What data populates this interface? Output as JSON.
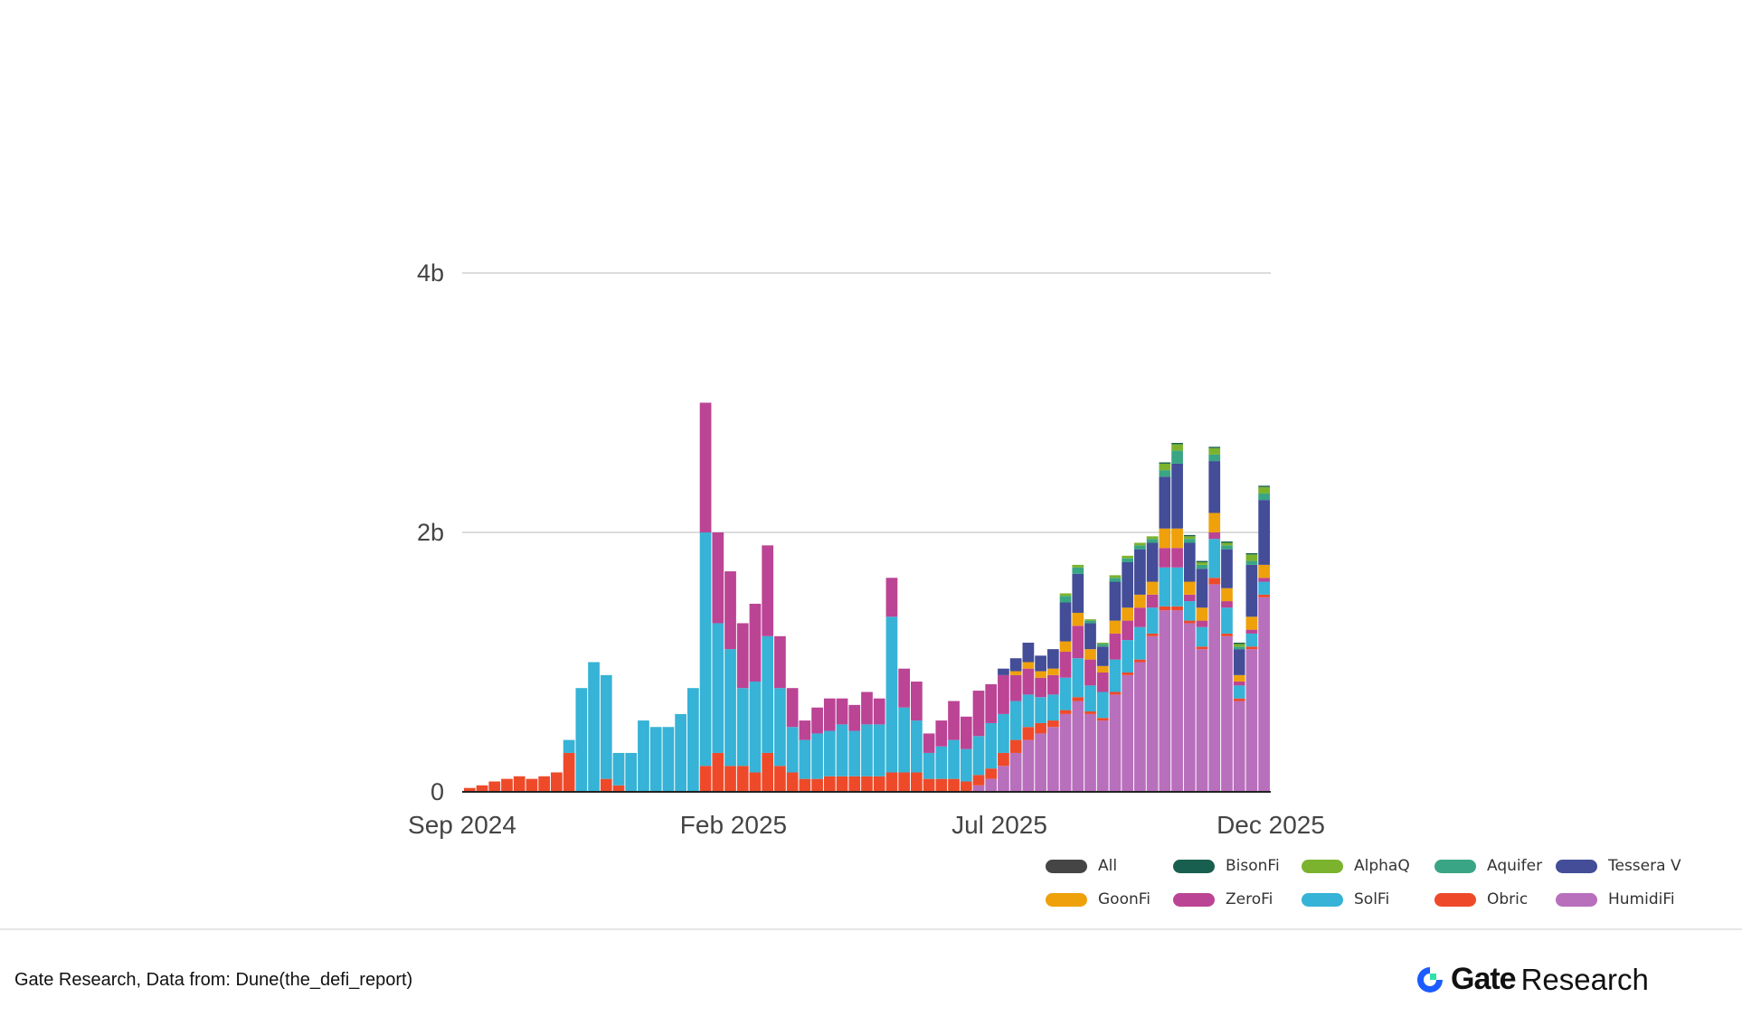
{
  "chart_data": {
    "type": "bar",
    "stacked": true,
    "title": "",
    "xlabel": "",
    "ylabel": "",
    "x_tick_labels": [
      "Sep 2024",
      "Feb 2025",
      "Jul 2025",
      "Dec 2025"
    ],
    "y_tick_labels": [
      "0",
      "2b",
      "4b"
    ],
    "y_ticks": [
      0,
      2,
      4
    ],
    "ylim": [
      0,
      5.9
    ],
    "x_range": [
      "2024-09-01",
      "2025-12-01"
    ],
    "grid": "horizontal",
    "legend_position": "bottom-right",
    "x_period_start": [
      "2024-09-02",
      "2024-09-09",
      "2024-09-16",
      "2024-09-23",
      "2024-09-30",
      "2024-10-07",
      "2024-10-14",
      "2024-10-21",
      "2024-10-28",
      "2024-11-04",
      "2024-11-11",
      "2024-11-18",
      "2024-11-25",
      "2024-12-02",
      "2024-12-09",
      "2024-12-16",
      "2024-12-23",
      "2024-12-30",
      "2025-01-06",
      "2025-01-13",
      "2025-01-20",
      "2025-01-27",
      "2025-02-03",
      "2025-02-10",
      "2025-02-17",
      "2025-02-24",
      "2025-03-03",
      "2025-03-10",
      "2025-03-17",
      "2025-03-24",
      "2025-03-31",
      "2025-04-07",
      "2025-04-14",
      "2025-04-21",
      "2025-04-28",
      "2025-05-05",
      "2025-05-12",
      "2025-05-19",
      "2025-05-26",
      "2025-06-02",
      "2025-06-09",
      "2025-06-16",
      "2025-06-23",
      "2025-06-30",
      "2025-07-07",
      "2025-07-14",
      "2025-07-21",
      "2025-07-28",
      "2025-08-04",
      "2025-08-11",
      "2025-08-18",
      "2025-08-25",
      "2025-09-01",
      "2025-09-08",
      "2025-09-15",
      "2025-09-22",
      "2025-09-29",
      "2025-10-06",
      "2025-10-13",
      "2025-10-20",
      "2025-10-27",
      "2025-11-03",
      "2025-11-10",
      "2025-11-17",
      "2025-11-24"
    ],
    "series": [
      {
        "name": "HumidiFi",
        "color": "#b86fbc",
        "values": [
          0,
          0,
          0,
          0,
          0,
          0,
          0,
          0,
          0,
          0,
          0,
          0,
          0,
          0,
          0,
          0,
          0,
          0,
          0,
          0,
          0,
          0,
          0,
          0,
          0,
          0,
          0,
          0,
          0,
          0,
          0,
          0,
          0,
          0,
          0,
          0,
          0,
          0,
          0,
          0,
          0,
          0.05,
          0.1,
          0.2,
          0.3,
          0.4,
          0.45,
          0.5,
          0.6,
          0.7,
          0.6,
          0.55,
          0.75,
          0.9,
          1.0,
          1.2,
          1.4,
          1.4,
          1.3,
          1.1,
          1.6,
          1.2,
          0.7,
          1.1,
          1.5
        ]
      },
      {
        "name": "Obric",
        "color": "#ee4a2a",
        "values": [
          0.03,
          0.05,
          0.08,
          0.1,
          0.12,
          0.1,
          0.12,
          0.15,
          0.3,
          0,
          0,
          0.1,
          0.05,
          0,
          0,
          0,
          0,
          0,
          0,
          0.2,
          0.3,
          0.2,
          0.2,
          0.15,
          0.3,
          0.2,
          0.15,
          0.1,
          0.1,
          0.12,
          0.12,
          0.12,
          0.12,
          0.12,
          0.15,
          0.15,
          0.15,
          0.1,
          0.1,
          0.1,
          0.08,
          0.08,
          0.08,
          0.1,
          0.1,
          0.1,
          0.08,
          0.05,
          0.03,
          0.03,
          0.02,
          0.02,
          0.02,
          0.02,
          0.02,
          0.02,
          0.03,
          0.03,
          0.02,
          0.02,
          0.05,
          0.02,
          0.02,
          0.02,
          0.02
        ]
      },
      {
        "name": "SolFi",
        "color": "#36b3d6",
        "values": [
          0,
          0,
          0,
          0,
          0,
          0,
          0,
          0,
          0.1,
          0.8,
          1.0,
          0.8,
          0.25,
          0.3,
          0.55,
          0.5,
          0.5,
          0.6,
          0.8,
          1.8,
          1.0,
          0.9,
          0.6,
          0.7,
          0.9,
          0.6,
          0.35,
          0.3,
          0.35,
          0.35,
          0.4,
          0.35,
          0.4,
          0.4,
          1.2,
          0.5,
          0.4,
          0.2,
          0.25,
          0.3,
          0.25,
          0.3,
          0.35,
          0.3,
          0.3,
          0.25,
          0.2,
          0.2,
          0.25,
          0.3,
          0.2,
          0.2,
          0.25,
          0.25,
          0.25,
          0.2,
          0.3,
          0.3,
          0.15,
          0.15,
          0.3,
          0.2,
          0.1,
          0.1,
          0.1
        ]
      },
      {
        "name": "ZeroFi",
        "color": "#bb4495",
        "values": [
          0,
          0,
          0,
          0,
          0,
          0,
          0,
          0,
          0,
          0,
          0,
          0,
          0,
          0,
          0,
          0,
          0,
          0,
          0,
          1.0,
          0.7,
          0.6,
          0.5,
          0.6,
          0.7,
          0.4,
          0.3,
          0.15,
          0.2,
          0.25,
          0.2,
          0.2,
          0.25,
          0.2,
          0.3,
          0.3,
          0.3,
          0.15,
          0.2,
          0.3,
          0.25,
          0.35,
          0.3,
          0.3,
          0.2,
          0.2,
          0.15,
          0.15,
          0.2,
          0.25,
          0.2,
          0.15,
          0.2,
          0.15,
          0.15,
          0.1,
          0.15,
          0.15,
          0.05,
          0.05,
          0.05,
          0.05,
          0.03,
          0.03,
          0.03
        ]
      },
      {
        "name": "GoonFi",
        "color": "#eea10a",
        "values": [
          0,
          0,
          0,
          0,
          0,
          0,
          0,
          0,
          0,
          0,
          0,
          0,
          0,
          0,
          0,
          0,
          0,
          0,
          0,
          0,
          0,
          0,
          0,
          0,
          0,
          0,
          0,
          0,
          0,
          0,
          0,
          0,
          0,
          0,
          0,
          0,
          0,
          0,
          0,
          0,
          0,
          0,
          0,
          0,
          0.03,
          0.05,
          0.05,
          0.05,
          0.08,
          0.1,
          0.08,
          0.05,
          0.1,
          0.1,
          0.1,
          0.1,
          0.15,
          0.15,
          0.1,
          0.1,
          0.15,
          0.1,
          0.05,
          0.1,
          0.1
        ]
      },
      {
        "name": "Tessera V",
        "color": "#434d98",
        "values": [
          0,
          0,
          0,
          0,
          0,
          0,
          0,
          0,
          0,
          0,
          0,
          0,
          0,
          0,
          0,
          0,
          0,
          0,
          0,
          0,
          0,
          0,
          0,
          0,
          0,
          0,
          0,
          0,
          0,
          0,
          0,
          0,
          0,
          0,
          0,
          0,
          0,
          0,
          0,
          0,
          0,
          0,
          0,
          0.05,
          0.1,
          0.15,
          0.12,
          0.15,
          0.3,
          0.3,
          0.2,
          0.15,
          0.3,
          0.35,
          0.35,
          0.3,
          0.4,
          0.5,
          0.3,
          0.3,
          0.4,
          0.3,
          0.2,
          0.4,
          0.5
        ]
      },
      {
        "name": "Aquifer",
        "color": "#3aa585",
        "values": [
          0,
          0,
          0,
          0,
          0,
          0,
          0,
          0,
          0,
          0,
          0,
          0,
          0,
          0,
          0,
          0,
          0,
          0,
          0,
          0,
          0,
          0,
          0,
          0,
          0,
          0,
          0,
          0,
          0,
          0,
          0,
          0,
          0,
          0,
          0,
          0,
          0,
          0,
          0,
          0,
          0,
          0,
          0,
          0,
          0,
          0,
          0,
          0,
          0.05,
          0.05,
          0.02,
          0.02,
          0.03,
          0.03,
          0.03,
          0.03,
          0.05,
          0.1,
          0.03,
          0.03,
          0.05,
          0.03,
          0.02,
          0.03,
          0.05
        ]
      },
      {
        "name": "AlphaQ",
        "color": "#7bb32e",
        "values": [
          0,
          0,
          0,
          0,
          0,
          0,
          0,
          0,
          0,
          0,
          0,
          0,
          0,
          0,
          0,
          0,
          0,
          0,
          0,
          0,
          0,
          0,
          0,
          0,
          0,
          0,
          0,
          0,
          0,
          0,
          0,
          0,
          0,
          0,
          0,
          0,
          0,
          0,
          0,
          0,
          0,
          0,
          0,
          0,
          0,
          0,
          0,
          0,
          0.02,
          0.02,
          0.01,
          0.01,
          0.02,
          0.02,
          0.02,
          0.02,
          0.05,
          0.05,
          0.02,
          0.02,
          0.05,
          0.02,
          0.02,
          0.05,
          0.05
        ]
      },
      {
        "name": "BisonFi",
        "color": "#185f4f",
        "values": [
          0,
          0,
          0,
          0,
          0,
          0,
          0,
          0,
          0,
          0,
          0,
          0,
          0,
          0,
          0,
          0,
          0,
          0,
          0,
          0,
          0,
          0,
          0,
          0,
          0,
          0,
          0,
          0,
          0,
          0,
          0,
          0,
          0,
          0,
          0,
          0,
          0,
          0,
          0,
          0,
          0,
          0,
          0,
          0,
          0,
          0,
          0,
          0,
          0,
          0,
          0,
          0,
          0,
          0,
          0,
          0,
          0.01,
          0.01,
          0.01,
          0.01,
          0.01,
          0.01,
          0.01,
          0.01,
          0.01
        ]
      },
      {
        "name": "All",
        "color": "#454545",
        "values": []
      }
    ]
  },
  "legend": [
    {
      "label": "All",
      "color": "#454545"
    },
    {
      "label": "BisonFi",
      "color": "#185f4f"
    },
    {
      "label": "AlphaQ",
      "color": "#7bb32e"
    },
    {
      "label": "Aquifer",
      "color": "#3aa585"
    },
    {
      "label": "Tessera V",
      "color": "#434d98"
    },
    {
      "label": "GoonFi",
      "color": "#eea10a"
    },
    {
      "label": "ZeroFi",
      "color": "#bb4495"
    },
    {
      "label": "SolFi",
      "color": "#36b3d6"
    },
    {
      "label": "Obric",
      "color": "#ee4a2a"
    },
    {
      "label": "HumidiFi",
      "color": "#b86fbc"
    }
  ],
  "footer": {
    "source": "Gate Research, Data from: Dune(the_defi_report)",
    "logo_text": "Gate",
    "logo_suffix": "Research"
  }
}
